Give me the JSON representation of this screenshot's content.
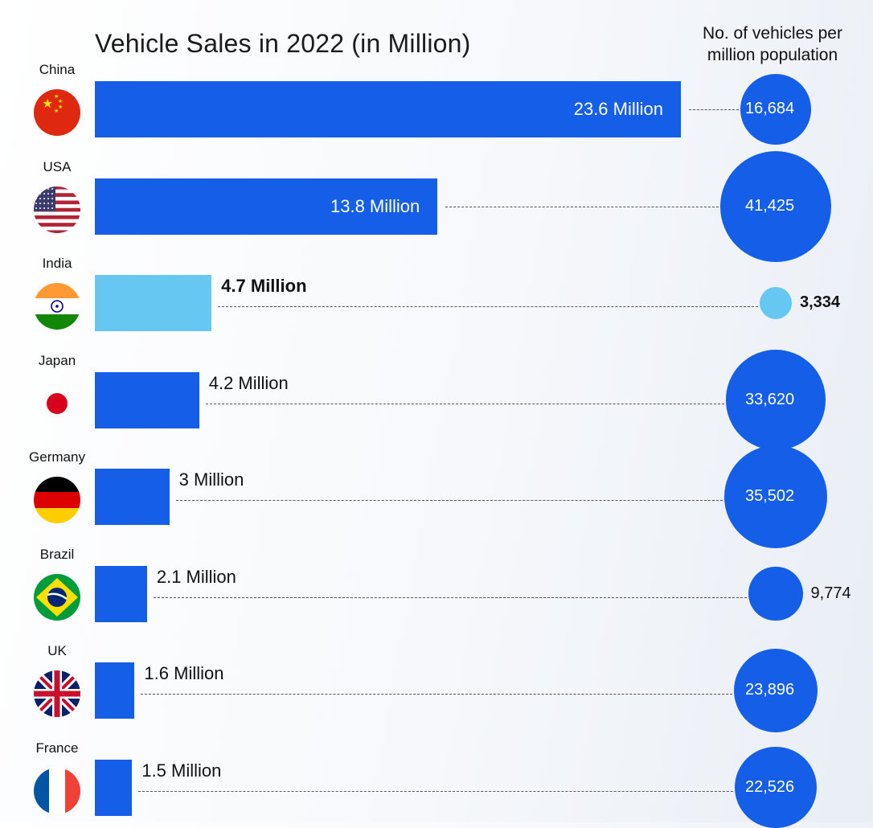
{
  "chart_data": {
    "type": "bar",
    "title": "Vehicle Sales in 2022 (in Million)",
    "bubble_header_line1": "No. of vehicles per",
    "bubble_header_line2": "million population",
    "colors": {
      "bar": "#155ee8",
      "highlight": "#67c7f3",
      "dash": "#555555"
    },
    "categories": [
      "China",
      "USA",
      "India",
      "Japan",
      "Germany",
      "Brazil",
      "UK",
      "France"
    ],
    "series": [
      {
        "name": "Vehicle Sales in 2022 (in Million)",
        "values": [
          23.6,
          13.8,
          4.7,
          4.2,
          3.0,
          2.1,
          1.6,
          1.5
        ],
        "labels": [
          "23.6 Million",
          "13.8 Million",
          "4.7 Million",
          "4.2 Million",
          "3 Million",
          "2.1 Million",
          "1.6 Million",
          "1.5 Million"
        ]
      },
      {
        "name": "No. of vehicles per million population",
        "values": [
          16684,
          41425,
          3334,
          33620,
          35502,
          9774,
          23896,
          22526
        ],
        "labels": [
          "16,684",
          "41,425",
          "3,334",
          "33,620",
          "35,502",
          "9,774",
          "23,896",
          "22,526"
        ]
      }
    ],
    "highlight": "India",
    "flags": [
      "china-flag",
      "usa-flag",
      "india-flag",
      "japan-flag",
      "germany-flag",
      "brazil-flag",
      "uk-flag",
      "france-flag"
    ]
  }
}
